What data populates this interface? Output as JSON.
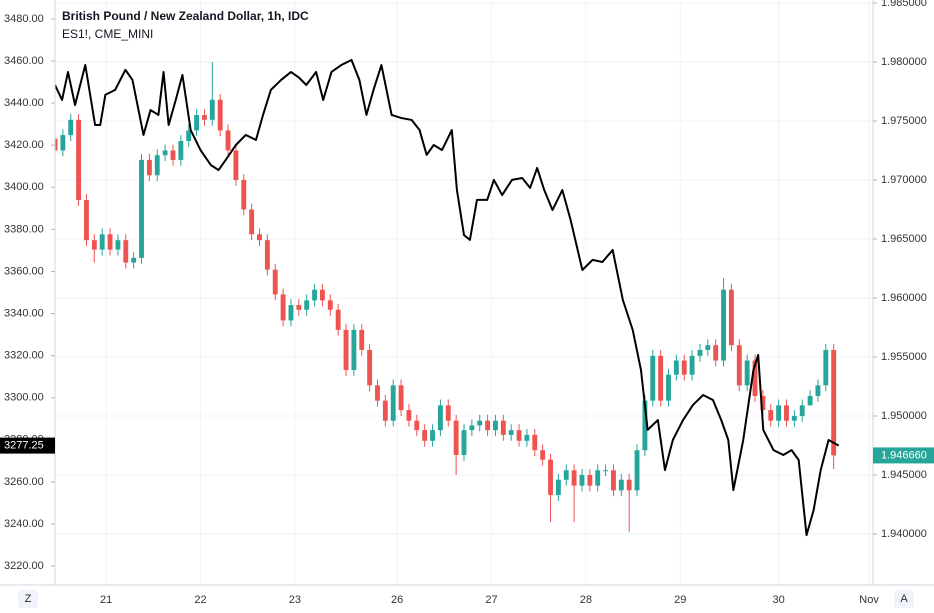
{
  "chart_data": {
    "type": "candlestick",
    "title": "British Pound / New Zealand Dollar, 1h, IDC",
    "grid": true,
    "xlim": [
      0,
      208
    ],
    "xticks": [
      {
        "value": 13,
        "label": "21"
      },
      {
        "value": 37,
        "label": "22"
      },
      {
        "value": 61,
        "label": "23"
      },
      {
        "value": 87,
        "label": "26"
      },
      {
        "value": 111,
        "label": "27"
      },
      {
        "value": 135,
        "label": "28"
      },
      {
        "value": 159,
        "label": "29"
      },
      {
        "value": 184,
        "label": "30"
      },
      {
        "value": 207,
        "label": "Nov"
      }
    ],
    "ylim": [
      3211,
      3489
    ],
    "yticks": [
      {
        "value": 3220,
        "label": "3220.00"
      },
      {
        "value": 3240,
        "label": "3240.00"
      },
      {
        "value": 3260,
        "label": "3260.00"
      },
      {
        "value": 3280,
        "label": "3280.00"
      },
      {
        "value": 3300,
        "label": "3300.00"
      },
      {
        "value": 3320,
        "label": "3320.00"
      },
      {
        "value": 3340,
        "label": "3340.00"
      },
      {
        "value": 3360,
        "label": "3360.00"
      },
      {
        "value": 3380,
        "label": "3380.00"
      },
      {
        "value": 3400,
        "label": "3400.00"
      },
      {
        "value": 3420,
        "label": "3420.00"
      },
      {
        "value": 3440,
        "label": "3440.00"
      },
      {
        "value": 3460,
        "label": "3460.00"
      },
      {
        "value": 3480,
        "label": "3480.00"
      }
    ],
    "y2lim": [
      1.93568,
      1.98525
    ],
    "y2ticks": [
      {
        "value": 1.94,
        "label": "1.940000"
      },
      {
        "value": 1.945,
        "label": "1.945000"
      },
      {
        "value": 1.95,
        "label": "1.950000"
      },
      {
        "value": 1.955,
        "label": "1.955000"
      },
      {
        "value": 1.96,
        "label": "1.960000"
      },
      {
        "value": 1.965,
        "label": "1.965000"
      },
      {
        "value": 1.97,
        "label": "1.970000"
      },
      {
        "value": 1.975,
        "label": "1.975000"
      },
      {
        "value": 1.98,
        "label": "1.980000"
      },
      {
        "value": 1.985,
        "label": "1.985000"
      }
    ],
    "series": [
      {
        "type": "candlestick",
        "axis": "y2",
        "up_color": "#26a69a",
        "down_color": "#ef5350",
        "x": [
          0,
          2,
          4,
          6,
          8,
          10,
          12,
          14,
          16,
          18,
          20,
          22,
          24,
          26,
          28,
          30,
          32,
          34,
          36,
          38,
          40,
          42,
          44,
          46,
          48,
          50,
          52,
          54,
          56,
          58,
          60,
          62,
          64,
          66,
          68,
          70,
          72,
          74,
          76,
          78,
          80,
          82,
          84,
          86,
          88,
          90,
          92,
          94,
          96,
          98,
          100,
          102,
          104,
          106,
          108,
          110,
          112,
          114,
          116,
          118,
          120,
          122,
          124,
          126,
          128,
          130,
          132,
          134,
          136,
          138,
          140,
          142,
          144,
          146,
          148,
          150,
          152,
          154,
          156,
          158,
          160,
          162,
          164,
          166,
          168,
          170,
          172,
          174,
          176,
          178,
          180,
          182,
          184,
          186,
          188,
          190,
          192,
          194,
          196,
          198
        ],
        "open": [
          1.9735,
          1.9725,
          1.9738,
          1.9751,
          1.9683,
          1.9649,
          1.9641,
          1.9654,
          1.9641,
          1.9649,
          1.963,
          1.9634,
          1.9717,
          1.9704,
          1.9721,
          1.9725,
          1.9717,
          1.9733,
          1.9742,
          1.9755,
          1.9751,
          1.9768,
          1.9742,
          1.9725,
          1.97,
          1.9675,
          1.9654,
          1.9649,
          1.9624,
          1.9603,
          1.9581,
          1.9594,
          1.959,
          1.9598,
          1.9607,
          1.9598,
          1.959,
          1.9573,
          1.9539,
          1.9573,
          1.9556,
          1.9526,
          1.9513,
          1.9496,
          1.9526,
          1.9505,
          1.9496,
          1.9488,
          1.9479,
          1.9488,
          1.9509,
          1.9496,
          1.9467,
          1.9488,
          1.9492,
          1.9496,
          1.9488,
          1.9496,
          1.9484,
          1.9488,
          1.9479,
          1.9484,
          1.9471,
          1.9463,
          1.9433,
          1.9446,
          1.9454,
          1.9441,
          1.945,
          1.9441,
          1.9454,
          1.9454,
          1.9437,
          1.9446,
          1.9437,
          1.9471,
          1.9513,
          1.9551,
          1.9513,
          1.9535,
          1.9547,
          1.9535,
          1.9551,
          1.9556,
          1.956,
          1.9547,
          1.9607,
          1.956,
          1.9526,
          1.9547,
          1.9517,
          1.9505,
          1.9496,
          1.9509,
          1.9496,
          1.95,
          1.9509,
          1.9517,
          1.9526,
          1.9556
        ],
        "high": [
          1.974,
          1.9743,
          1.9756,
          1.9756,
          1.9688,
          1.9654,
          1.9659,
          1.9659,
          1.9654,
          1.9654,
          1.9639,
          1.9722,
          1.9722,
          1.9726,
          1.973,
          1.973,
          1.9738,
          1.9747,
          1.976,
          1.976,
          1.98,
          1.9773,
          1.9747,
          1.973,
          1.9705,
          1.968,
          1.9659,
          1.9654,
          1.9629,
          1.9608,
          1.9599,
          1.9599,
          1.9603,
          1.9612,
          1.9612,
          1.9603,
          1.9595,
          1.9578,
          1.9578,
          1.9578,
          1.9561,
          1.9531,
          1.9518,
          1.9531,
          1.9531,
          1.951,
          1.9501,
          1.9493,
          1.9493,
          1.9514,
          1.9514,
          1.9501,
          1.9493,
          1.9497,
          1.9501,
          1.9501,
          1.9501,
          1.9501,
          1.9493,
          1.9493,
          1.9489,
          1.9489,
          1.9476,
          1.9468,
          1.9451,
          1.9459,
          1.9459,
          1.9455,
          1.9455,
          1.9459,
          1.9459,
          1.9459,
          1.9451,
          1.9451,
          1.9476,
          1.9518,
          1.9556,
          1.9556,
          1.954,
          1.9552,
          1.9552,
          1.9556,
          1.9561,
          1.9565,
          1.9565,
          1.9617,
          1.9612,
          1.9565,
          1.9552,
          1.9552,
          1.9522,
          1.951,
          1.9514,
          1.9514,
          1.9505,
          1.9514,
          1.9522,
          1.9531,
          1.9561,
          1.9561
        ],
        "low": [
          1.972,
          1.972,
          1.9733,
          1.9678,
          1.9644,
          1.963,
          1.9636,
          1.9636,
          1.9636,
          1.9625,
          1.9625,
          1.9629,
          1.9699,
          1.9699,
          1.9716,
          1.9712,
          1.9712,
          1.9728,
          1.9737,
          1.9746,
          1.9746,
          1.9737,
          1.972,
          1.9695,
          1.967,
          1.9649,
          1.9644,
          1.9619,
          1.9598,
          1.9576,
          1.9576,
          1.9585,
          1.9585,
          1.9593,
          1.9593,
          1.9585,
          1.9568,
          1.9534,
          1.9534,
          1.9551,
          1.9521,
          1.9508,
          1.9491,
          1.9491,
          1.95,
          1.9491,
          1.9483,
          1.9474,
          1.9474,
          1.9483,
          1.9491,
          1.945,
          1.9462,
          1.9483,
          1.9487,
          1.9483,
          1.9483,
          1.9479,
          1.9479,
          1.9474,
          1.9474,
          1.9466,
          1.9458,
          1.941,
          1.9428,
          1.9441,
          1.941,
          1.9436,
          1.9436,
          1.9436,
          1.9449,
          1.9432,
          1.9432,
          1.9402,
          1.9432,
          1.9466,
          1.9508,
          1.9508,
          1.9508,
          1.953,
          1.953,
          1.953,
          1.9546,
          1.9551,
          1.9542,
          1.9542,
          1.9555,
          1.9521,
          1.9521,
          1.9512,
          1.95,
          1.9491,
          1.9491,
          1.9491,
          1.9491,
          1.9495,
          1.9512,
          1.9512,
          1.9521,
          1.9455
        ],
        "close": [
          1.9725,
          1.9738,
          1.9751,
          1.9683,
          1.9649,
          1.9641,
          1.9654,
          1.9641,
          1.9649,
          1.963,
          1.9634,
          1.9717,
          1.9704,
          1.9721,
          1.9725,
          1.9717,
          1.9733,
          1.9742,
          1.9755,
          1.9751,
          1.9768,
          1.9742,
          1.9725,
          1.97,
          1.9675,
          1.9654,
          1.9649,
          1.9624,
          1.9603,
          1.9581,
          1.9594,
          1.959,
          1.9598,
          1.9607,
          1.9598,
          1.959,
          1.9573,
          1.9539,
          1.9573,
          1.9556,
          1.9526,
          1.9513,
          1.9496,
          1.9526,
          1.9505,
          1.9496,
          1.9488,
          1.9479,
          1.9488,
          1.9509,
          1.9496,
          1.9467,
          1.9488,
          1.9492,
          1.9496,
          1.9488,
          1.9496,
          1.9484,
          1.9488,
          1.9479,
          1.9484,
          1.9471,
          1.9463,
          1.9433,
          1.9446,
          1.9454,
          1.9441,
          1.945,
          1.9441,
          1.9454,
          1.9454,
          1.9437,
          1.9446,
          1.9437,
          1.9471,
          1.9513,
          1.9551,
          1.9513,
          1.9535,
          1.9547,
          1.9535,
          1.9551,
          1.9556,
          1.956,
          1.9547,
          1.9607,
          1.956,
          1.9526,
          1.9547,
          1.9517,
          1.9505,
          1.9496,
          1.9509,
          1.9496,
          1.95,
          1.9509,
          1.9517,
          1.9526,
          1.9556,
          1.94666
        ]
      },
      {
        "type": "line",
        "name": "ES1!, CME_MINI",
        "axis": "y",
        "color": "#000000",
        "x": [
          0,
          1.8,
          3.3,
          5.1,
          7.7,
          10.2,
          11.5,
          12.8,
          15.3,
          17.9,
          19.7,
          22.5,
          24.3,
          26.3,
          27.6,
          28.9,
          30.7,
          32.4,
          34.5,
          37,
          39.6,
          41.6,
          43.4,
          46,
          48.5,
          51.1,
          52.9,
          54.9,
          57.5,
          60,
          62.1,
          63.9,
          66.4,
          68.2,
          70.3,
          72.8,
          75.4,
          77.4,
          79.2,
          81,
          83,
          85.6,
          88.1,
          90.7,
          92.7,
          94.5,
          96.3,
          98.4,
          100.9,
          102.2,
          104,
          105.5,
          107.3,
          109.9,
          111.6,
          113.7,
          116.2,
          118.8,
          120.8,
          122.6,
          124.4,
          126.5,
          129,
          131.1,
          134.1,
          136.7,
          139.2,
          141.8,
          144.4,
          146.9,
          149,
          150.7,
          153.3,
          155.1,
          157.1,
          159.7,
          162.2,
          164.8,
          167.3,
          169.4,
          171.2,
          172.5,
          175,
          177.6,
          178.8,
          180.1,
          182.7,
          185.2,
          187.3,
          189.1,
          191.1,
          192.9,
          194.7,
          196.7,
          199.3
        ],
        "values": [
          3448.6,
          3441.5,
          3454.8,
          3439.1,
          3458.1,
          3429.6,
          3429.6,
          3443.9,
          3446.3,
          3455.8,
          3451.0,
          3424.9,
          3436.7,
          3434.4,
          3454.8,
          3429.6,
          3441.5,
          3453.4,
          3427.2,
          3417.7,
          3410.6,
          3408.2,
          3413.0,
          3420.1,
          3424.9,
          3422.5,
          3434.4,
          3446.3,
          3451.0,
          3454.8,
          3452.0,
          3448.6,
          3454.8,
          3441.5,
          3454.8,
          3458.1,
          3460.5,
          3451.0,
          3434.4,
          3446.3,
          3458.1,
          3434.4,
          3432.9,
          3432.0,
          3427.2,
          3415.4,
          3420.1,
          3417.7,
          3427.2,
          3398.7,
          3377.3,
          3375.0,
          3394.0,
          3394.0,
          3403.5,
          3396.3,
          3403.5,
          3404.4,
          3399.7,
          3409.2,
          3398.7,
          3389.2,
          3398.7,
          3384.5,
          3360.7,
          3365.5,
          3364.5,
          3370.2,
          3346.4,
          3332.2,
          3313.2,
          3284.7,
          3289.4,
          3265.6,
          3279.9,
          3289.4,
          3296.5,
          3301.3,
          3298.9,
          3289.4,
          3279.9,
          3256.1,
          3279.9,
          3313.2,
          3320.3,
          3284.7,
          3275.1,
          3272.8,
          3275.1,
          3270.4,
          3234.7,
          3246.6,
          3265.6,
          3279.9,
          3277.25
        ]
      }
    ],
    "last_value": 3277.25,
    "last_price": {
      "value": 1.94666,
      "label": "1.946660"
    },
    "buttons": [
      "Z",
      "A"
    ]
  }
}
